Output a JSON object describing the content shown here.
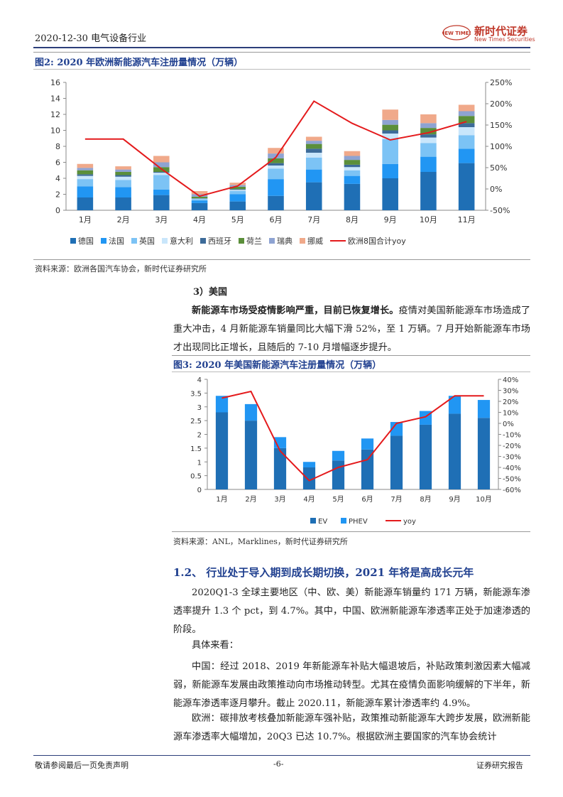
{
  "header": {
    "date_dept": "2020-12-30 电气设备行业",
    "logo_cn": "新时代证券",
    "logo_en": "New Times Securities",
    "logo_badge": "NEW TIMES"
  },
  "fig2": {
    "title": "图2:  2020 年欧洲新能源汽车注册量情况（万辆）",
    "source": "资料来源：欧洲各国汽车协会，新时代证券研究所"
  },
  "section3_heading": "3）美国",
  "para_us": {
    "bold": "新能源车市场受疫情影响严重，目前已恢复增长。",
    "rest": "疫情对美国新能源车市场造成了重大冲击，4 月新能源车销量同比大幅下滑 52%，至 1 万辆。7 月开始新能源车市场才出现同比正增长，且随后的 7-10 月增幅逐步提升。"
  },
  "fig3": {
    "title": "图3:  2020 年美国新能源汽车注册量情况（万辆）",
    "source": "资料来源：ANL，Marklines，新时代证券研究所"
  },
  "section_1_2": "1.2、 行业处于导入期到成长期切换，2021 年将是高成长元年",
  "para1": "2020Q1-3 全球主要地区（中、欧、美）新能源车销量约 171 万辆，新能源车渗透率提升 1.3 个 pct，到 4.7%。其中，中国、欧洲新能源车渗透率正处于加速渗透的阶段。",
  "para2": "具体来看：",
  "para3": "中国：经过 2018、2019 年新能源车补贴大幅退坡后，补贴政策刺激因素大幅减弱，新能源车发展由政策推动向市场推动转型。尤其在疫情负面影响缓解的下半年，新能源车渗透率逐月攀升。截止 2020.11，新能源车累计渗透率约 4.9%。",
  "para4": "欧洲：碳排放考核叠加新能源车强补贴，政策推动新能源车大跨步发展，欧洲新能源车渗透率大幅增加，20Q3 已达 10.7%。根据欧洲主要国家的汽车协会统计",
  "footer": {
    "left": "敬请参阅最后一页免责声明",
    "center": "-6-",
    "right": "证券研究报告"
  },
  "chart_data": [
    {
      "type": "bar",
      "stacked": true,
      "categories": [
        "1月",
        "2月",
        "3月",
        "4月",
        "5月",
        "6月",
        "7月",
        "8月",
        "9月",
        "10月",
        "11月"
      ],
      "series": [
        {
          "name": "德国",
          "color": "#1f6fb5",
          "values": [
            1.6,
            1.6,
            1.9,
            0.9,
            1.1,
            1.8,
            3.5,
            3.3,
            4.0,
            4.8,
            5.9
          ]
        },
        {
          "name": "法国",
          "color": "#2196f3",
          "values": [
            1.4,
            1.3,
            0.7,
            0.3,
            0.9,
            2.1,
            1.6,
            1.0,
            1.8,
            1.9,
            1.8
          ]
        },
        {
          "name": "英国",
          "color": "#7cc3f5",
          "values": [
            0.9,
            0.9,
            1.8,
            0.2,
            0.4,
            1.3,
            1.5,
            0.7,
            3.1,
            1.7,
            1.7
          ]
        },
        {
          "name": "意大利",
          "color": "#c9e6fb",
          "values": [
            0.4,
            0.4,
            0.3,
            0.05,
            0.15,
            0.4,
            0.6,
            0.4,
            0.7,
            0.7,
            1.0
          ]
        },
        {
          "name": "西班牙",
          "color": "#3d6b99",
          "values": [
            0.2,
            0.2,
            0.1,
            0.05,
            0.1,
            0.3,
            0.5,
            0.3,
            0.4,
            0.4,
            0.5
          ]
        },
        {
          "name": "荷兰",
          "color": "#5b8f3a",
          "values": [
            0.5,
            0.4,
            0.6,
            0.2,
            0.3,
            0.6,
            0.6,
            0.6,
            0.7,
            0.8,
            0.9
          ]
        },
        {
          "name": "瑞典",
          "color": "#8ea3d2",
          "values": [
            0.3,
            0.3,
            0.6,
            0.3,
            0.2,
            0.6,
            0.4,
            0.5,
            0.6,
            0.6,
            0.6
          ]
        },
        {
          "name": "挪威",
          "color": "#f0a98a",
          "values": [
            0.5,
            0.4,
            0.8,
            0.4,
            0.3,
            0.7,
            0.5,
            0.6,
            1.3,
            1.1,
            0.8
          ]
        }
      ],
      "line": {
        "name": "欧洲8国合计yoy",
        "color": "#e41a1c",
        "values": [
          117,
          117,
          47,
          -17,
          7,
          74,
          206,
          154,
          115,
          132,
          158
        ]
      },
      "ylim": [
        0,
        16
      ],
      "y2lim": [
        -50,
        250
      ],
      "yticks": [
        "0",
        "2",
        "4",
        "6",
        "8",
        "10",
        "12",
        "14",
        "16"
      ],
      "y2ticks": [
        "-50%",
        "0%",
        "50%",
        "100%",
        "150%",
        "200%",
        "250%"
      ]
    },
    {
      "type": "bar",
      "stacked": true,
      "categories": [
        "1月",
        "2月",
        "3月",
        "4月",
        "5月",
        "6月",
        "7月",
        "8月",
        "9月",
        "10月"
      ],
      "series": [
        {
          "name": "EV",
          "color": "#1f6fb5",
          "values": [
            2.8,
            2.5,
            1.5,
            0.8,
            1.05,
            1.45,
            1.95,
            2.35,
            2.75,
            2.6
          ]
        },
        {
          "name": "PHEV",
          "color": "#2196f3",
          "values": [
            0.6,
            0.6,
            0.4,
            0.2,
            0.35,
            0.4,
            0.5,
            0.5,
            0.65,
            0.65
          ]
        }
      ],
      "line": {
        "name": "yoy",
        "color": "#e41a1c",
        "values": [
          23,
          29,
          -25,
          -52,
          -40,
          -33,
          0,
          6,
          25,
          25
        ]
      },
      "ylim": [
        0,
        4
      ],
      "y2lim": [
        -60,
        40
      ],
      "yticks": [
        "0",
        "0.5",
        "1",
        "1.5",
        "2",
        "2.5",
        "3",
        "3.5",
        "4"
      ],
      "y2ticks": [
        "-60%",
        "-50%",
        "-40%",
        "-30%",
        "-20%",
        "-10%",
        "0%",
        "10%",
        "20%",
        "30%",
        "40%"
      ]
    }
  ]
}
